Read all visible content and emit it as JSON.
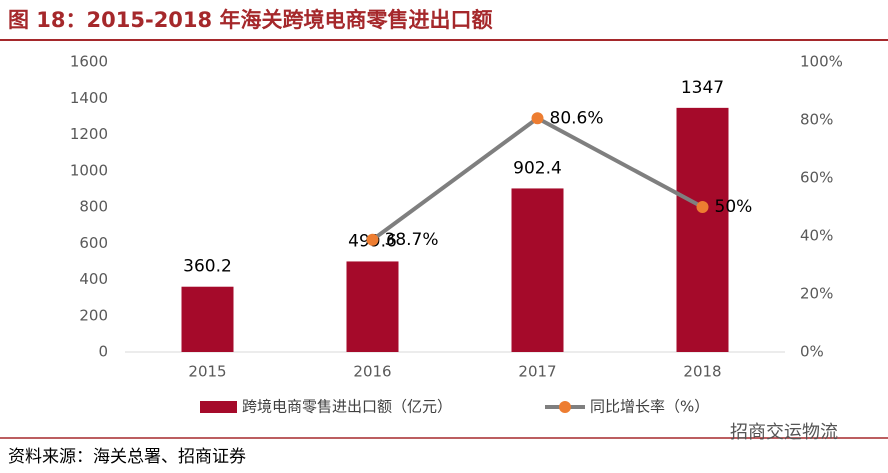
{
  "chart_data": {
    "type": "bar",
    "title": "图 18：2015-2018 年海关跨境电商零售进出口额",
    "categories": [
      "2015",
      "2016",
      "2017",
      "2018"
    ],
    "series": [
      {
        "name": "跨境电商零售进出口额（亿元）",
        "type": "bar",
        "color": "#a50a2a",
        "values": [
          360.2,
          499.6,
          902.4,
          1347
        ]
      },
      {
        "name": "同比增长率（%）",
        "type": "line",
        "axis": "y2",
        "color": "#7f7f7f",
        "marker_color": "#ed7d31",
        "values": [
          null,
          38.7,
          80.6,
          50
        ],
        "value_labels": [
          null,
          "38.7%",
          "80.6%",
          "50%"
        ]
      }
    ],
    "ylim": [
      0,
      1600
    ],
    "yticks": [
      0,
      200,
      400,
      600,
      800,
      1000,
      1200,
      1400,
      1600
    ],
    "y2lim": [
      0,
      100
    ],
    "y2ticks": [
      {
        "value": 0,
        "label": "0%"
      },
      {
        "value": 20,
        "label": "20%"
      },
      {
        "value": 40,
        "label": "40%"
      },
      {
        "value": 60,
        "label": "60%"
      },
      {
        "value": 80,
        "label": "80%"
      },
      {
        "value": 100,
        "label": "100%"
      }
    ],
    "grid": false,
    "legend": "bottom",
    "source": "资料来源：海关总署、招商证券",
    "watermark": "招商交运物流"
  }
}
